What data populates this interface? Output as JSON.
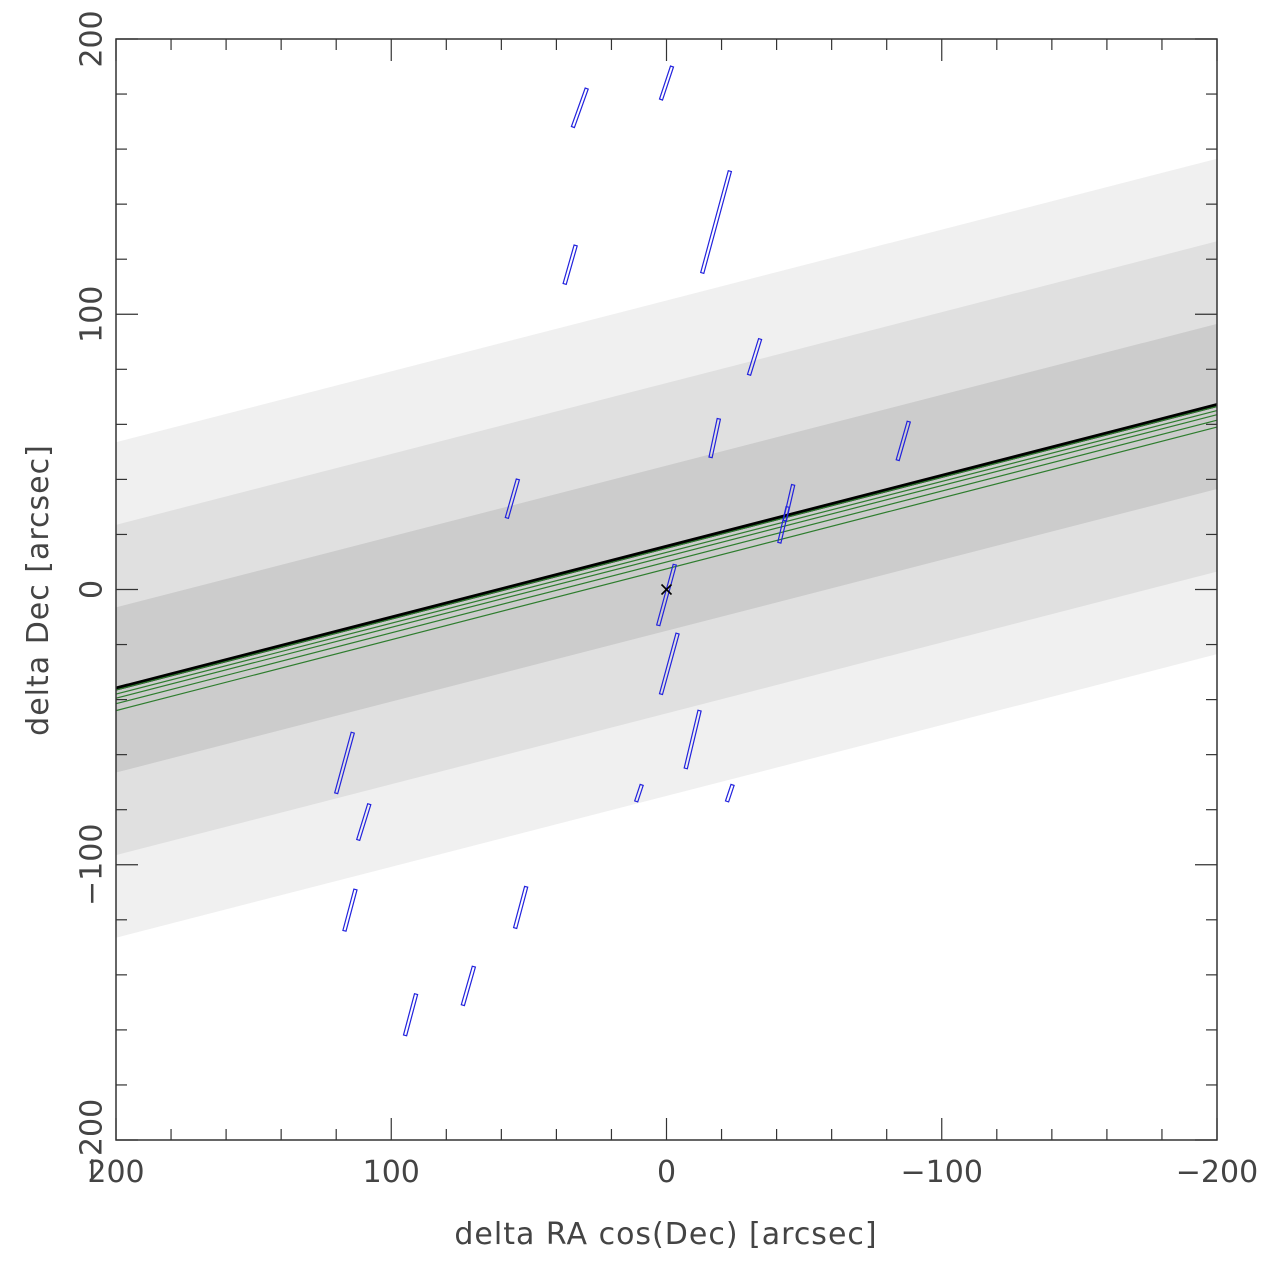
{
  "chart_data": {
    "type": "scatter",
    "title": "",
    "xlabel": "delta RA cos(Dec) [arcsec]",
    "ylabel": "delta Dec [arcsec]",
    "xlim": [
      200,
      -200
    ],
    "ylim": [
      -200,
      200
    ],
    "x_ticks": [
      {
        "value": 200,
        "label": "200"
      },
      {
        "value": 100,
        "label": "100"
      },
      {
        "value": 0,
        "label": "0"
      },
      {
        "value": -100,
        "label": "−100"
      },
      {
        "value": -200,
        "label": "−200"
      }
    ],
    "y_ticks": [
      {
        "value": 200,
        "label": "200"
      },
      {
        "value": 100,
        "label": "100"
      },
      {
        "value": 0,
        "label": "0"
      },
      {
        "value": -100,
        "label": "−100"
      },
      {
        "value": -200,
        "label": "−200"
      }
    ],
    "minor_tick_step": 20,
    "grid": false,
    "bands": {
      "slope": -0.2575,
      "center_intercept": 15,
      "half_widths": [
        {
          "half_width": 90,
          "color": "#f0f0f0"
        },
        {
          "half_width": 60,
          "color": "#e0e0e0"
        },
        {
          "half_width": 30,
          "color": "#cccccc"
        }
      ]
    },
    "lines": [
      {
        "intercept": 15.5,
        "slope": -0.2575,
        "color": "#000000",
        "width": 4
      },
      {
        "intercept": 15.0,
        "slope": -0.2575,
        "color": "#2e7d2e",
        "width": 1.2
      },
      {
        "intercept": 13.5,
        "slope": -0.2575,
        "color": "#2e7d2e",
        "width": 1.2
      },
      {
        "intercept": 12.0,
        "slope": -0.2575,
        "color": "#2e7d2e",
        "width": 1.2
      },
      {
        "intercept": 10.0,
        "slope": -0.2575,
        "color": "#2e7d2e",
        "width": 1.2
      },
      {
        "intercept": 7.5,
        "slope": -0.2575,
        "color": "#2e7d2e",
        "width": 1.2
      }
    ],
    "segment_color": "#2222dd",
    "segments": [
      {
        "x1": 2,
        "y1": 178,
        "x2": -2,
        "y2": 190
      },
      {
        "x1": 34,
        "y1": 168,
        "x2": 29,
        "y2": 182
      },
      {
        "x1": 37,
        "y1": 111,
        "x2": 33,
        "y2": 125
      },
      {
        "x1": -13,
        "y1": 115,
        "x2": -23,
        "y2": 152
      },
      {
        "x1": -30,
        "y1": 78,
        "x2": -34,
        "y2": 91
      },
      {
        "x1": -16,
        "y1": 48,
        "x2": -19,
        "y2": 62
      },
      {
        "x1": -84,
        "y1": 47,
        "x2": -88,
        "y2": 61
      },
      {
        "x1": 58,
        "y1": 26,
        "x2": 54,
        "y2": 40
      },
      {
        "x1": -41,
        "y1": 17,
        "x2": -44,
        "y2": 30
      },
      {
        "x1": -43,
        "y1": 25,
        "x2": -46,
        "y2": 38
      },
      {
        "x1": 3,
        "y1": -13,
        "x2": -3,
        "y2": 9
      },
      {
        "x1": 2,
        "y1": -38,
        "x2": -4,
        "y2": -16
      },
      {
        "x1": -7,
        "y1": -65,
        "x2": -12,
        "y2": -44
      },
      {
        "x1": 120,
        "y1": -74,
        "x2": 114,
        "y2": -52
      },
      {
        "x1": 11,
        "y1": -77,
        "x2": 9,
        "y2": -71
      },
      {
        "x1": -22,
        "y1": -77,
        "x2": -24,
        "y2": -71
      },
      {
        "x1": 112,
        "y1": -91,
        "x2": 108,
        "y2": -78
      },
      {
        "x1": 117,
        "y1": -124,
        "x2": 113,
        "y2": -109
      },
      {
        "x1": 55,
        "y1": -123,
        "x2": 51,
        "y2": -108
      },
      {
        "x1": 74,
        "y1": -151,
        "x2": 70,
        "y2": -137
      },
      {
        "x1": 95,
        "y1": -162,
        "x2": 91,
        "y2": -147
      }
    ],
    "marker": {
      "x": 0,
      "y": 0,
      "symbol": "×",
      "color": "#000000"
    }
  }
}
